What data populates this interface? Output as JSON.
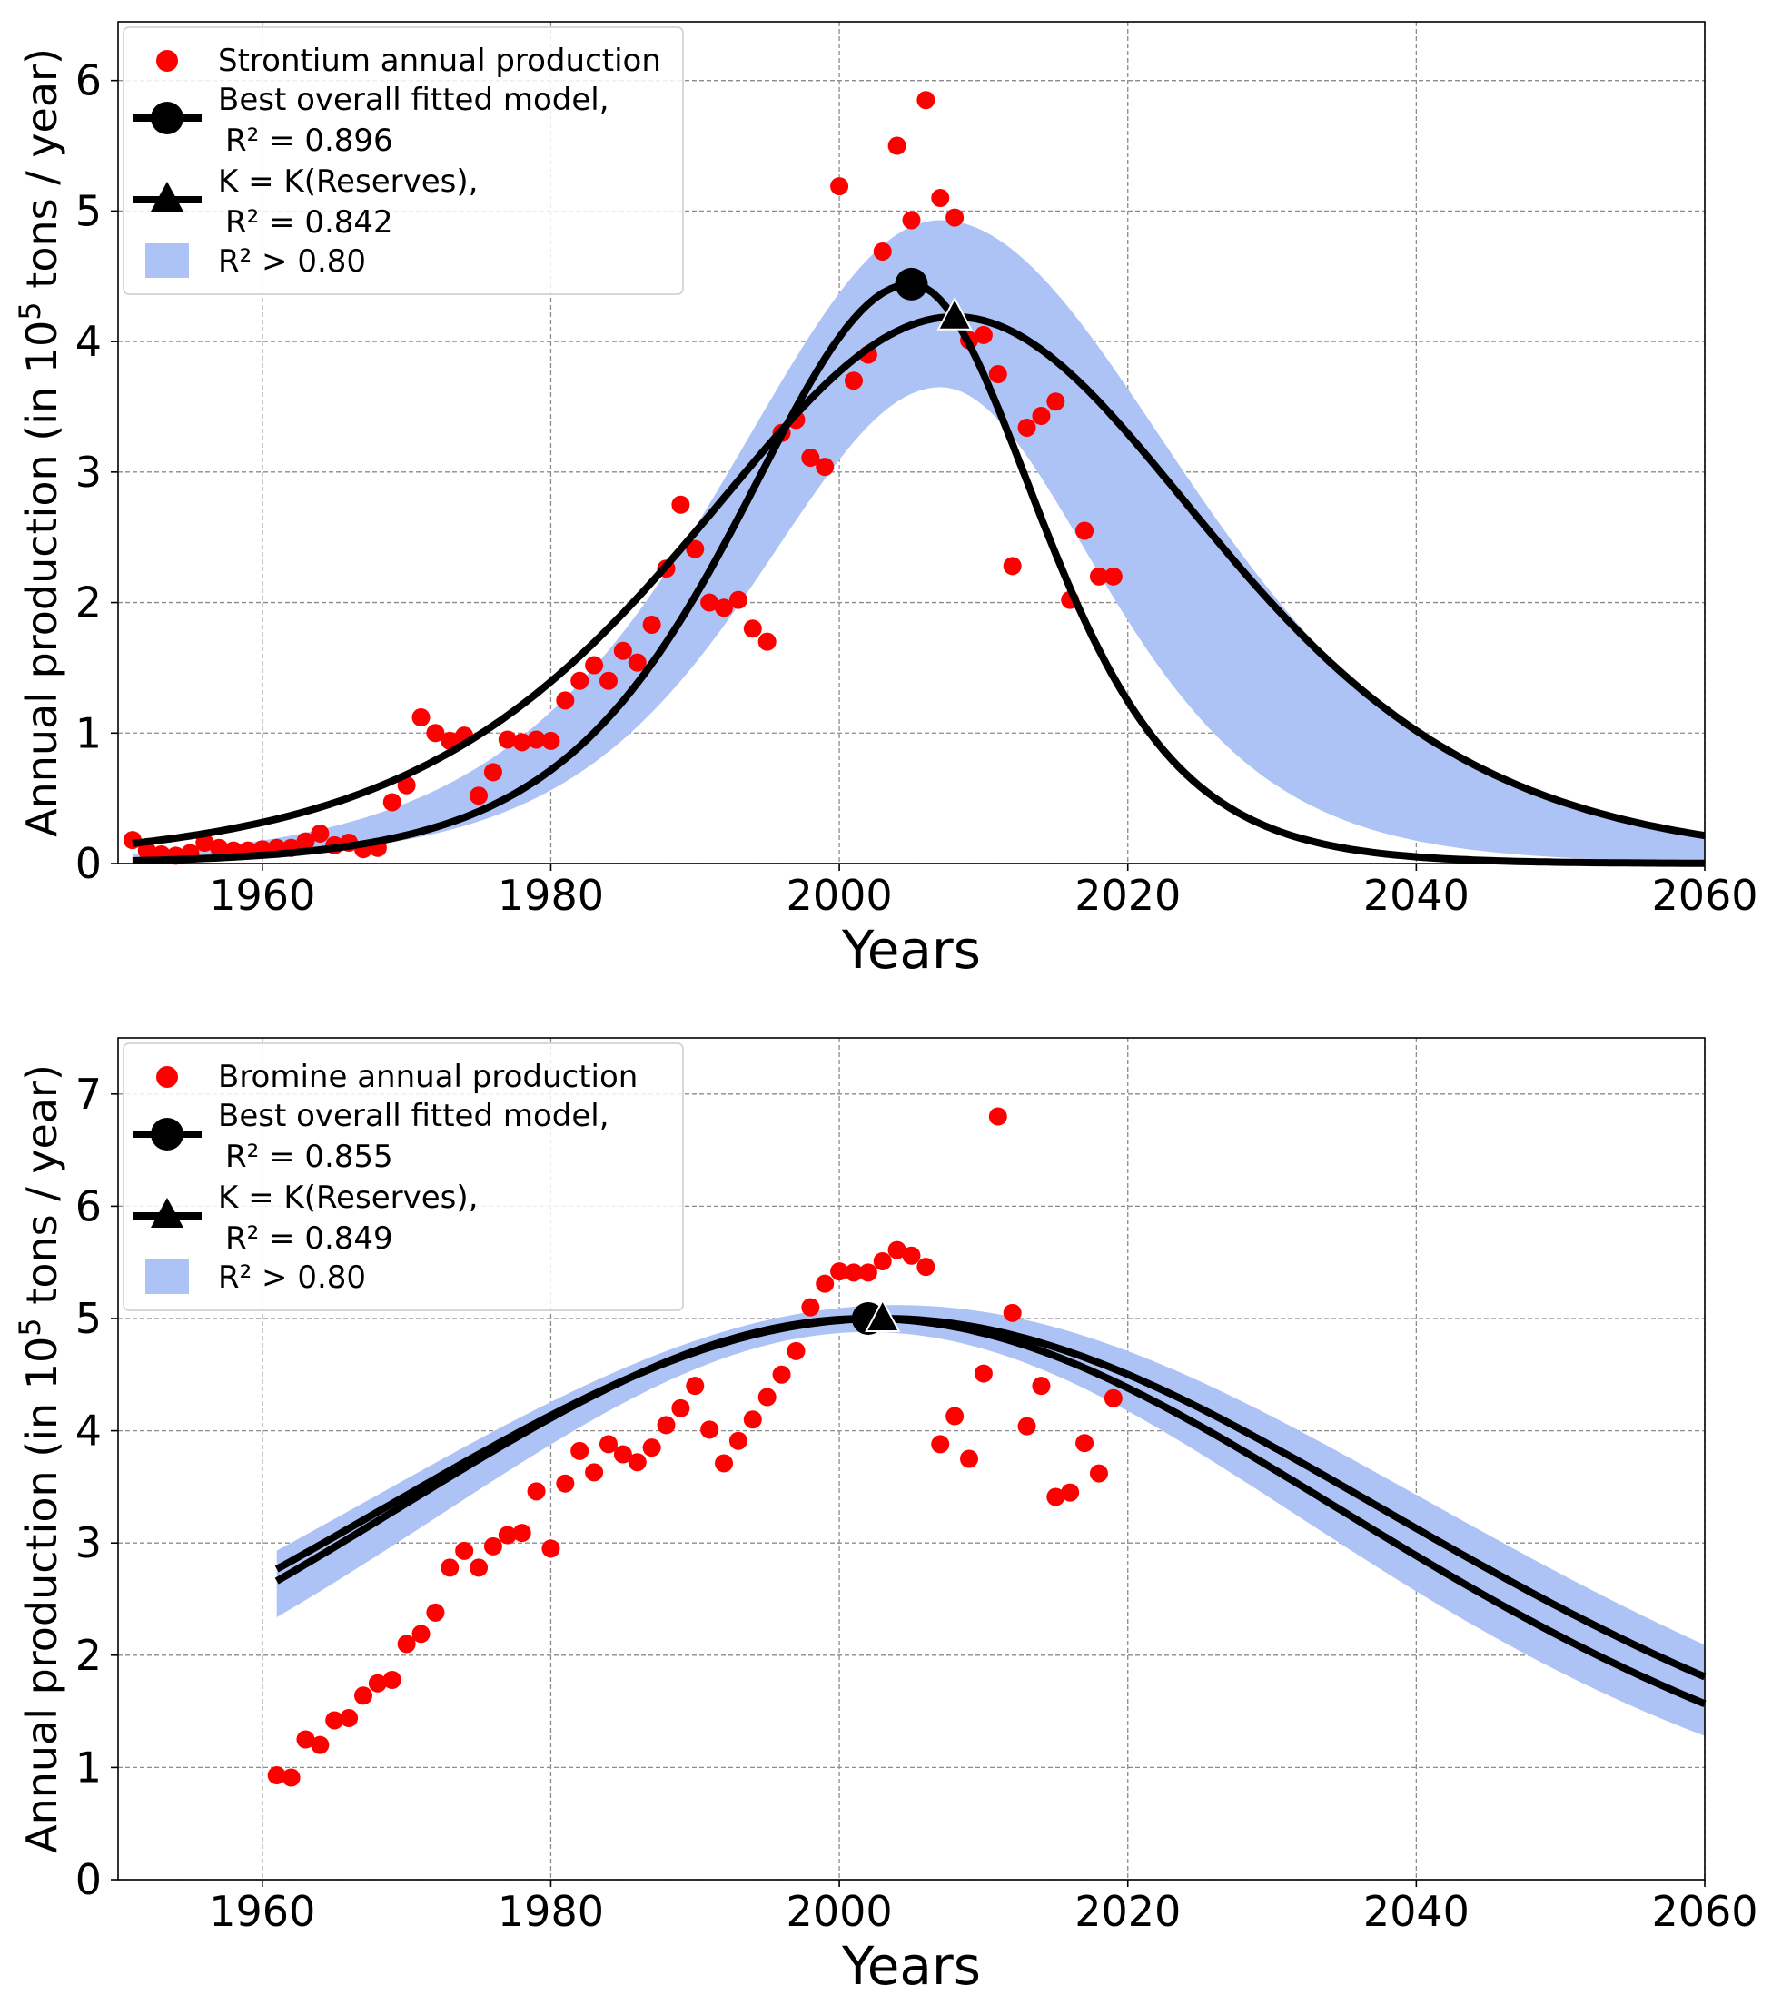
{
  "chart_data": [
    {
      "type": "scatter",
      "title": "",
      "xlabel": "Years",
      "ylabel": "Annual production (in 10^5 tons / year)",
      "ylabel_parts": [
        "Annual production (in 10",
        "5",
        " tons / year)"
      ],
      "xlim": [
        1950,
        2060
      ],
      "ylim": [
        0,
        6.45
      ],
      "xticks": [
        1960,
        1980,
        2000,
        2020,
        2040,
        2060
      ],
      "yticks": [
        0,
        1,
        2,
        3,
        4,
        5,
        6
      ],
      "grid": true,
      "legend": {
        "placement": "top-left",
        "entries": [
          {
            "marker": "red-dot",
            "lines": [
              "Strontium annual production"
            ]
          },
          {
            "marker": "circle-line",
            "lines": [
              "Best overall fitted model,",
              "R² = 0.896"
            ]
          },
          {
            "marker": "triangle-line",
            "lines": [
              "K = K(Reserves),",
              "R² = 0.842"
            ]
          },
          {
            "marker": "band",
            "lines": [
              "R² > 0.80"
            ]
          }
        ]
      },
      "colors": {
        "points": "#ff0000",
        "band": "#aec3f5",
        "curves": "#000000"
      },
      "series": [
        {
          "name": "Strontium annual production",
          "kind": "points",
          "x": [
            1951,
            1952,
            1953,
            1954,
            1955,
            1956,
            1957,
            1958,
            1959,
            1960,
            1961,
            1962,
            1963,
            1964,
            1965,
            1966,
            1967,
            1968,
            1969,
            1970,
            1971,
            1972,
            1973,
            1974,
            1975,
            1976,
            1977,
            1978,
            1979,
            1980,
            1981,
            1982,
            1983,
            1984,
            1985,
            1986,
            1987,
            1988,
            1989,
            1990,
            1991,
            1992,
            1993,
            1994,
            1995,
            1996,
            1997,
            1998,
            1999,
            2000,
            2001,
            2002,
            2003,
            2004,
            2005,
            2006,
            2007,
            2008,
            2009,
            2010,
            2011,
            2012,
            2013,
            2014,
            2015,
            2016,
            2017,
            2018,
            2019
          ],
          "y": [
            0.18,
            0.1,
            0.07,
            0.06,
            0.08,
            0.16,
            0.12,
            0.1,
            0.1,
            0.11,
            0.12,
            0.12,
            0.17,
            0.23,
            0.14,
            0.16,
            0.11,
            0.12,
            0.47,
            0.6,
            1.12,
            1.0,
            0.94,
            0.98,
            0.52,
            0.7,
            0.95,
            0.93,
            0.95,
            0.94,
            1.25,
            1.4,
            1.52,
            1.4,
            1.63,
            1.54,
            1.83,
            2.26,
            2.75,
            2.41,
            2.0,
            1.96,
            2.02,
            1.8,
            1.7,
            3.3,
            3.4,
            3.11,
            3.04,
            5.19,
            3.7,
            3.9,
            4.69,
            5.5,
            4.93,
            5.85,
            5.1,
            4.95,
            4.01,
            4.05,
            3.75,
            2.28,
            3.34,
            3.43,
            3.54,
            2.02,
            2.55,
            2.2,
            2.2
          ]
        },
        {
          "name": "Best overall fitted model",
          "kind": "curve",
          "r2": 0.896,
          "peak_year": 2005,
          "peak_value": 4.44,
          "rise_width": 8.0,
          "fall_width": 6.0,
          "marker": "circle"
        },
        {
          "name": "K = K(Reserves)",
          "kind": "curve",
          "r2": 0.842,
          "peak_year": 2008,
          "peak_value": 4.19,
          "rise_width": 12.2,
          "fall_width": 12.0,
          "marker": "triangle"
        },
        {
          "name": "R² > 0.80",
          "kind": "band",
          "upper": {
            "peak_year": 2007,
            "peak_value": 4.93,
            "rise_width": 10.0,
            "fall_width": 11.5
          },
          "lower": {
            "peak_year": 2007,
            "peak_value": 3.65,
            "rise_width": 8.5,
            "fall_width": 7.5
          }
        }
      ]
    },
    {
      "type": "scatter",
      "title": "",
      "xlabel": "Years",
      "ylabel": "Annual production (in 10^5 tons / year)",
      "ylabel_parts": [
        "Annual production (in 10",
        "5",
        " tons / year)"
      ],
      "xlim": [
        1950,
        2060
      ],
      "ylim": [
        0,
        7.5
      ],
      "xticks": [
        1960,
        1980,
        2000,
        2020,
        2040,
        2060
      ],
      "yticks": [
        0,
        1,
        2,
        3,
        4,
        5,
        6,
        7
      ],
      "grid": true,
      "legend": {
        "placement": "top-left",
        "entries": [
          {
            "marker": "red-dot",
            "lines": [
              "Bromine annual production"
            ]
          },
          {
            "marker": "circle-line",
            "lines": [
              "Best overall fitted model,",
              "R² = 0.855"
            ]
          },
          {
            "marker": "triangle-line",
            "lines": [
              "K = K(Reserves),",
              "R² = 0.849"
            ]
          },
          {
            "marker": "band",
            "lines": [
              "R² > 0.80"
            ]
          }
        ]
      },
      "colors": {
        "points": "#ff0000",
        "band": "#aec3f5",
        "curves": "#000000"
      },
      "series": [
        {
          "name": "Bromine annual production",
          "kind": "points",
          "x": [
            1961,
            1962,
            1963,
            1964,
            1965,
            1966,
            1967,
            1968,
            1969,
            1970,
            1971,
            1972,
            1973,
            1974,
            1975,
            1976,
            1977,
            1978,
            1979,
            1980,
            1981,
            1982,
            1983,
            1984,
            1985,
            1986,
            1987,
            1988,
            1989,
            1990,
            1991,
            1992,
            1993,
            1994,
            1995,
            1996,
            1997,
            1998,
            1999,
            2000,
            2001,
            2002,
            2003,
            2004,
            2005,
            2006,
            2007,
            2008,
            2009,
            2010,
            2011,
            2012,
            2013,
            2014,
            2015,
            2016,
            2017,
            2018,
            2019
          ],
          "y": [
            0.93,
            0.91,
            1.25,
            1.2,
            1.42,
            1.44,
            1.64,
            1.75,
            1.78,
            2.1,
            2.19,
            2.38,
            2.78,
            2.93,
            2.78,
            2.97,
            3.07,
            3.09,
            3.46,
            2.95,
            3.53,
            3.82,
            3.63,
            3.88,
            3.79,
            3.72,
            3.85,
            4.05,
            4.2,
            4.4,
            4.01,
            3.71,
            3.91,
            4.1,
            4.3,
            4.5,
            4.71,
            5.1,
            5.31,
            5.42,
            5.41,
            5.41,
            5.51,
            5.61,
            5.56,
            5.46,
            3.88,
            4.13,
            3.75,
            4.51,
            6.8,
            5.05,
            4.04,
            4.4,
            3.41,
            3.45,
            3.89,
            3.62,
            4.29
          ]
        },
        {
          "name": "Best overall fitted model",
          "kind": "curve",
          "r2": 0.855,
          "peak_year": 2002,
          "peak_value": 5.0,
          "width": 24.5,
          "marker": "circle"
        },
        {
          "name": "K = K(Reserves)",
          "kind": "curve",
          "r2": 0.849,
          "peak_year": 2003,
          "peak_value": 5.0,
          "width": 26.0,
          "marker": "triangle"
        },
        {
          "name": "R² > 0.80",
          "kind": "band",
          "upper": {
            "peak_year": 2004,
            "peak_value": 5.12,
            "width": 27.5
          },
          "lower": {
            "peak_year": 2002,
            "peak_value": 4.88,
            "width": 22.5
          }
        }
      ]
    }
  ]
}
